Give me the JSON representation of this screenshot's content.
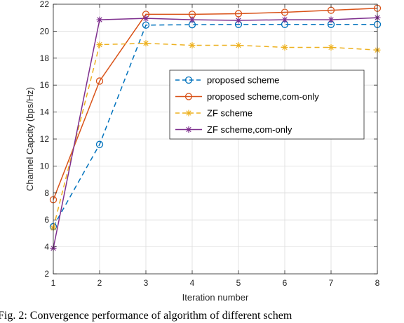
{
  "chart_data": {
    "type": "line",
    "xlabel": "Iteration number",
    "ylabel": "Channel Capcity (bps/Hz)",
    "xlim": [
      1,
      8
    ],
    "ylim": [
      2,
      22
    ],
    "xticks": [
      1,
      2,
      3,
      4,
      5,
      6,
      7,
      8
    ],
    "yticks": [
      2,
      4,
      6,
      8,
      10,
      12,
      14,
      16,
      18,
      20,
      22
    ],
    "grid": true,
    "legend_position": "center-right",
    "x": [
      1,
      2,
      3,
      4,
      5,
      6,
      7,
      8
    ],
    "series": [
      {
        "name": "proposed scheme",
        "values": [
          5.5,
          11.6,
          20.45,
          20.48,
          20.5,
          20.5,
          20.5,
          20.5
        ],
        "color": "#0072BD",
        "dash": "dashed",
        "marker": "circle"
      },
      {
        "name": "proposed scheme,com-only",
        "values": [
          7.5,
          16.3,
          21.25,
          21.25,
          21.3,
          21.4,
          21.55,
          21.7
        ],
        "color": "#D95319",
        "dash": "solid",
        "marker": "circle"
      },
      {
        "name": "ZF scheme",
        "values": [
          5.4,
          19.0,
          19.1,
          18.95,
          18.95,
          18.8,
          18.8,
          18.6
        ],
        "color": "#EDB120",
        "dash": "dashed",
        "marker": "star"
      },
      {
        "name": "ZF scheme,com-only",
        "values": [
          3.9,
          20.85,
          20.95,
          20.85,
          20.8,
          20.85,
          20.85,
          21.0
        ],
        "color": "#7E2F8E",
        "dash": "solid",
        "marker": "star"
      }
    ]
  },
  "caption": "Fig. 2: Convergence performance of algorithm of different schem"
}
